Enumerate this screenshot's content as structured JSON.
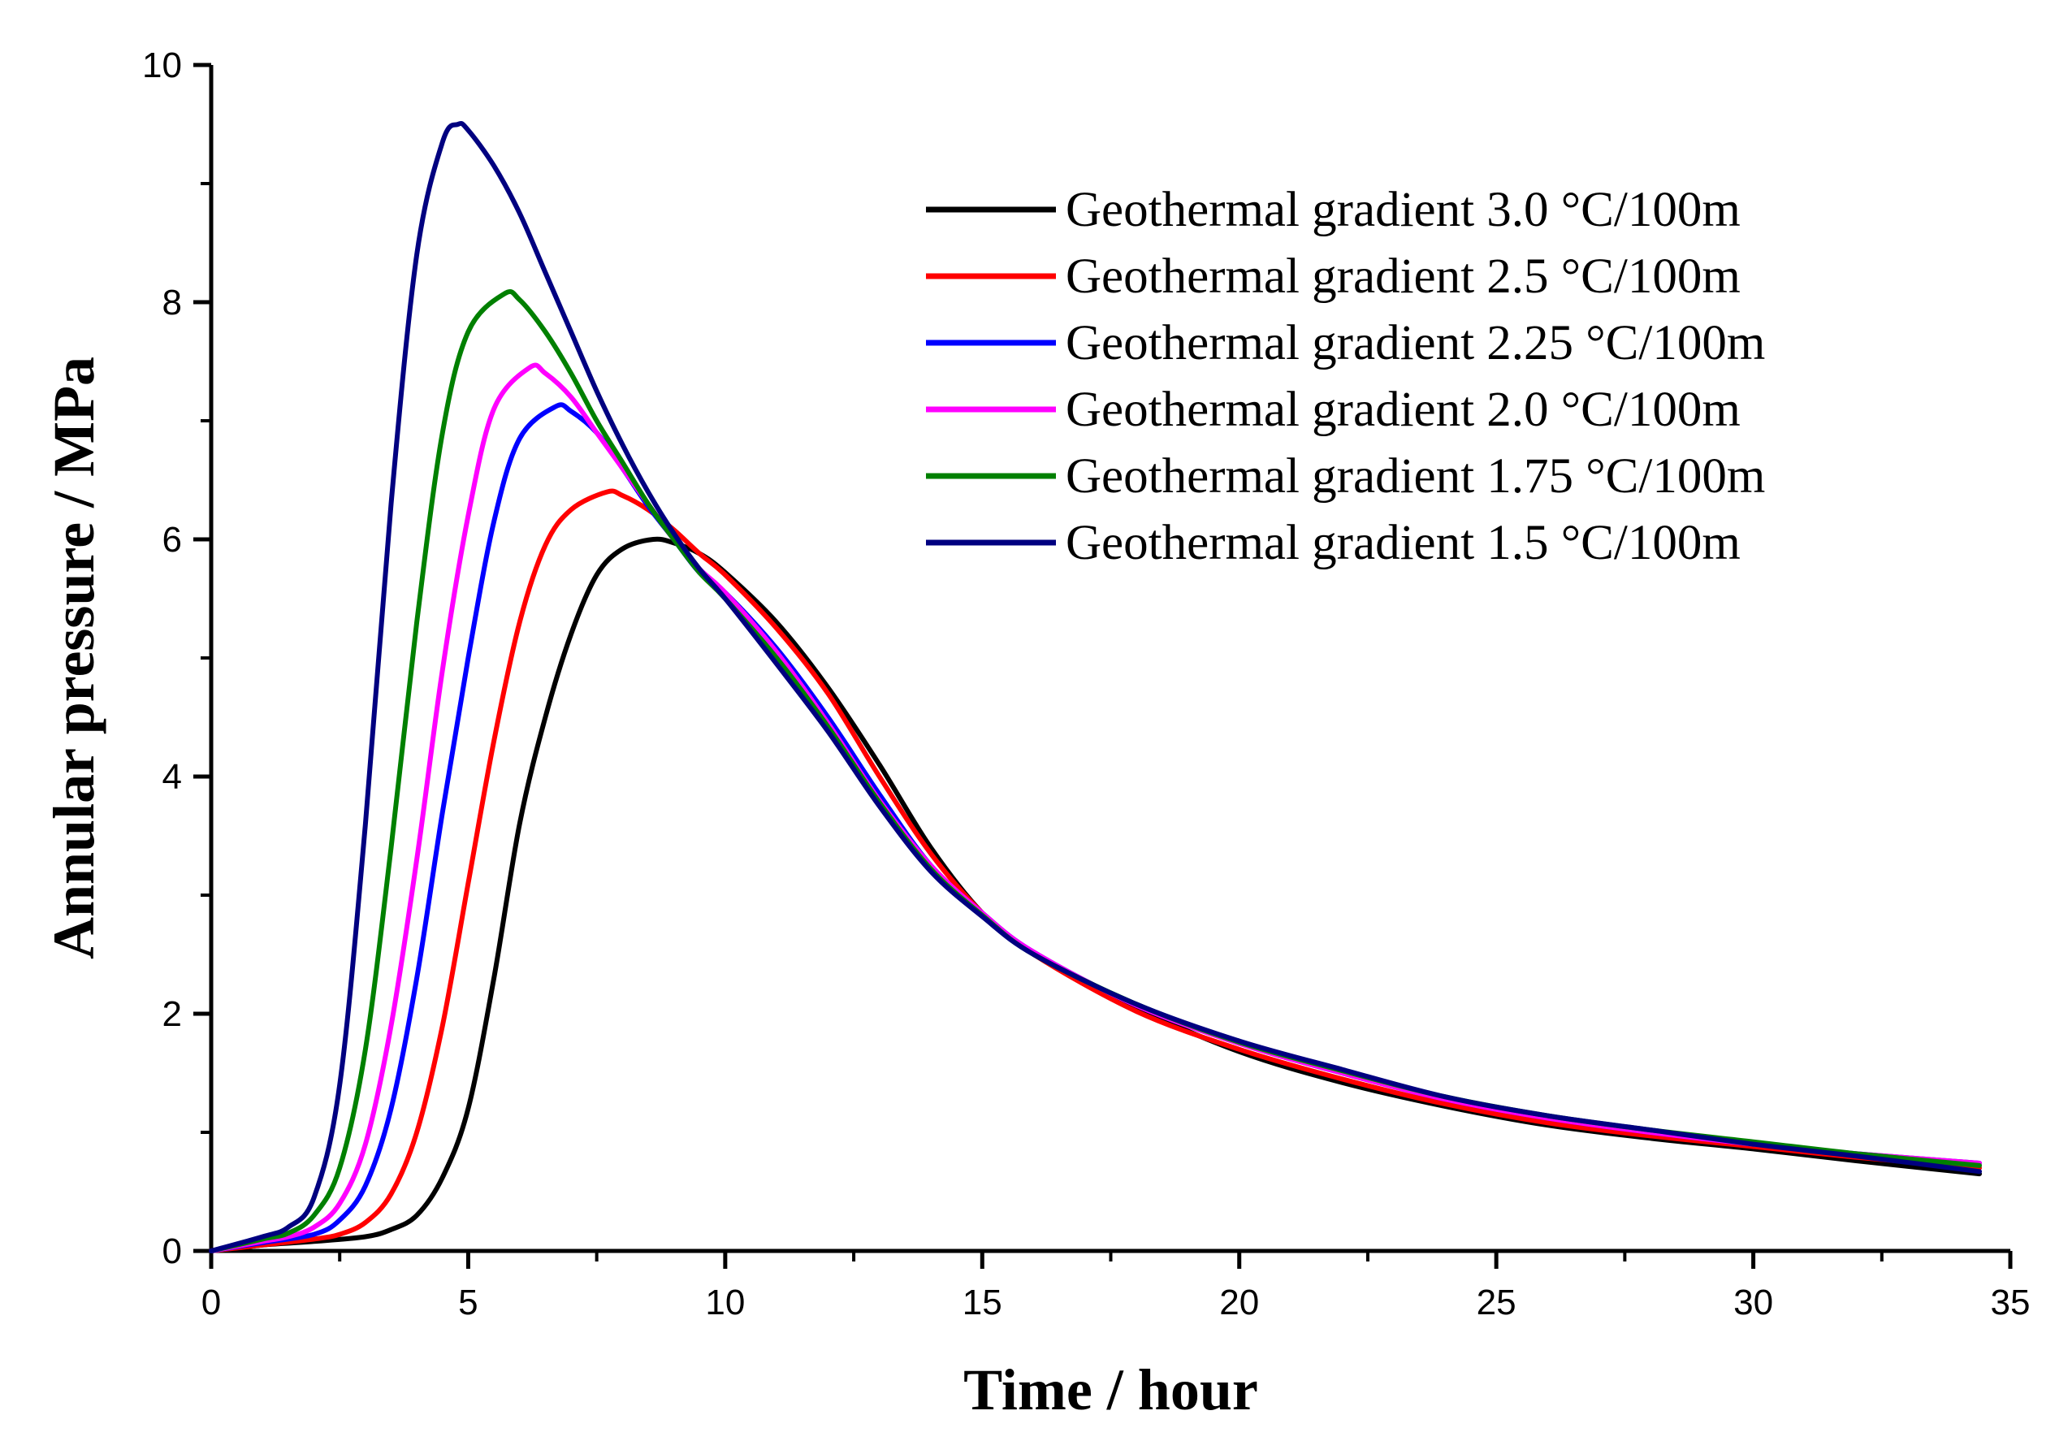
{
  "chart_data": {
    "type": "line",
    "title": "",
    "xlabel": "Time / hour",
    "ylabel": "Annular pressure / MPa",
    "xlim": [
      0,
      35
    ],
    "ylim": [
      0,
      10
    ],
    "xticks": [
      0,
      5,
      10,
      15,
      20,
      25,
      30,
      35
    ],
    "yticks": [
      0,
      2,
      4,
      6,
      8,
      10
    ],
    "grid": false,
    "legend_position": "top-right",
    "series": [
      {
        "name": "Geothermal gradient 3.0 °C/100m",
        "color": "#000000",
        "x": [
          0,
          1,
          2,
          3,
          3.5,
          4,
          4.5,
          5,
          5.5,
          6,
          6.5,
          7,
          7.5,
          8,
          8.6,
          9,
          9.5,
          10,
          11,
          12,
          13,
          14,
          15,
          16,
          18,
          20,
          22,
          24,
          26,
          28,
          30,
          32,
          34.4
        ],
        "y": [
          0,
          0.05,
          0.08,
          0.12,
          0.18,
          0.3,
          0.62,
          1.2,
          2.3,
          3.6,
          4.5,
          5.2,
          5.7,
          5.92,
          6.0,
          5.97,
          5.88,
          5.72,
          5.3,
          4.75,
          4.1,
          3.4,
          2.85,
          2.5,
          2.05,
          1.68,
          1.42,
          1.22,
          1.06,
          0.95,
          0.86,
          0.76,
          0.65
        ]
      },
      {
        "name": "Geothermal gradient 2.5 °C/100m",
        "color": "#ff0000",
        "x": [
          0,
          1,
          2,
          2.5,
          3,
          3.5,
          4,
          4.5,
          5,
          5.5,
          6,
          6.5,
          7,
          7.7,
          8,
          8.5,
          9,
          9.5,
          10,
          11,
          12,
          13,
          14,
          15,
          16,
          18,
          20,
          22,
          24,
          26,
          28,
          30,
          32,
          34.4
        ],
        "y": [
          0,
          0.05,
          0.1,
          0.14,
          0.24,
          0.48,
          1.0,
          1.9,
          3.1,
          4.3,
          5.3,
          5.95,
          6.25,
          6.4,
          6.37,
          6.25,
          6.08,
          5.88,
          5.7,
          5.25,
          4.7,
          4.0,
          3.35,
          2.85,
          2.5,
          2.02,
          1.7,
          1.45,
          1.24,
          1.08,
          0.97,
          0.88,
          0.79,
          0.7
        ]
      },
      {
        "name": "Geothermal gradient 2.25 °C/100m",
        "color": "#0000ff",
        "x": [
          0,
          1,
          2,
          2.5,
          3,
          3.5,
          4,
          4.5,
          5,
          5.5,
          6,
          6.7,
          7,
          7.5,
          8,
          8.5,
          9,
          9.5,
          10,
          11,
          12,
          13,
          14,
          15,
          16,
          18,
          20,
          22,
          24,
          26,
          28,
          30,
          32,
          34.4
        ],
        "y": [
          0,
          0.07,
          0.14,
          0.26,
          0.55,
          1.2,
          2.3,
          3.7,
          5.0,
          6.15,
          6.85,
          7.12,
          7.08,
          6.9,
          6.6,
          6.28,
          6.0,
          5.72,
          5.55,
          5.08,
          4.5,
          3.85,
          3.25,
          2.85,
          2.52,
          2.07,
          1.75,
          1.5,
          1.28,
          1.12,
          1.0,
          0.9,
          0.82,
          0.74
        ]
      },
      {
        "name": "Geothermal gradient 2.0 °C/100m",
        "color": "#ff00ff",
        "x": [
          0,
          1,
          1.5,
          2,
          2.5,
          3,
          3.5,
          4,
          4.5,
          5,
          5.5,
          6.2,
          6.5,
          7,
          7.5,
          8,
          8.5,
          9,
          9.5,
          10,
          11,
          12,
          13,
          14,
          15,
          16,
          18,
          20,
          22,
          24,
          26,
          28,
          30,
          32,
          34.4
        ],
        "y": [
          0,
          0.08,
          0.12,
          0.2,
          0.4,
          0.9,
          1.9,
          3.3,
          4.9,
          6.2,
          7.1,
          7.45,
          7.4,
          7.2,
          6.9,
          6.6,
          6.3,
          6.0,
          5.75,
          5.55,
          5.05,
          4.45,
          3.8,
          3.25,
          2.85,
          2.52,
          2.07,
          1.75,
          1.5,
          1.28,
          1.12,
          1.0,
          0.9,
          0.82,
          0.74
        ]
      },
      {
        "name": "Geothermal gradient 1.75 °C/100m",
        "color": "#008000",
        "x": [
          0,
          1,
          1.5,
          2,
          2.5,
          3,
          3.5,
          4,
          4.5,
          5,
          5.7,
          6,
          6.5,
          7,
          7.5,
          8,
          8.5,
          9,
          9.5,
          10,
          11,
          12,
          13,
          14,
          15,
          16,
          18,
          20,
          22,
          24,
          26,
          28,
          30,
          32,
          34.4
        ],
        "y": [
          0,
          0.1,
          0.15,
          0.3,
          0.7,
          1.7,
          3.4,
          5.3,
          6.9,
          7.75,
          8.07,
          8.02,
          7.75,
          7.4,
          7.0,
          6.65,
          6.3,
          6.0,
          5.72,
          5.5,
          5.0,
          4.42,
          3.78,
          3.22,
          2.83,
          2.5,
          2.08,
          1.76,
          1.52,
          1.3,
          1.14,
          1.02,
          0.92,
          0.82,
          0.72
        ]
      },
      {
        "name": "Geothermal gradient 1.5 °C/100m",
        "color": "#000080",
        "x": [
          0,
          1,
          1.5,
          2,
          2.5,
          3,
          3.5,
          4,
          4.5,
          4.8,
          5,
          5.5,
          6,
          6.5,
          7,
          7.5,
          8,
          8.5,
          9,
          9.5,
          10,
          11,
          12,
          13,
          14,
          15,
          16,
          18,
          20,
          22,
          24,
          26,
          28,
          30,
          32,
          34.4
        ],
        "y": [
          0,
          0.12,
          0.2,
          0.45,
          1.4,
          3.6,
          6.3,
          8.4,
          9.35,
          9.5,
          9.45,
          9.15,
          8.75,
          8.25,
          7.75,
          7.25,
          6.8,
          6.4,
          6.05,
          5.75,
          5.5,
          4.95,
          4.38,
          3.75,
          3.2,
          2.82,
          2.5,
          2.08,
          1.77,
          1.53,
          1.3,
          1.14,
          1.02,
          0.9,
          0.8,
          0.67
        ]
      }
    ]
  }
}
